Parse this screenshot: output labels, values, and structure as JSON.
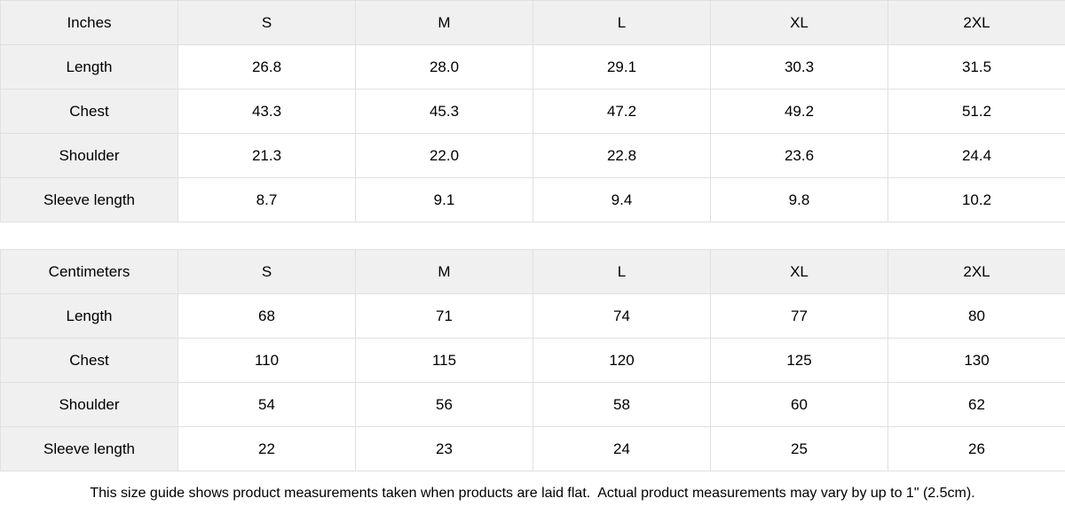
{
  "tables": [
    {
      "name": "inches",
      "header": [
        "Inches",
        "S",
        "M",
        "L",
        "XL",
        "2XL"
      ],
      "rows": [
        {
          "label": "Length",
          "values": [
            "26.8",
            "28.0",
            "29.1",
            "30.3",
            "31.5"
          ]
        },
        {
          "label": "Chest",
          "values": [
            "43.3",
            "45.3",
            "47.2",
            "49.2",
            "51.2"
          ]
        },
        {
          "label": "Shoulder",
          "values": [
            "21.3",
            "22.0",
            "22.8",
            "23.6",
            "24.4"
          ]
        },
        {
          "label": "Sleeve length",
          "values": [
            "8.7",
            "9.1",
            "9.4",
            "9.8",
            "10.2"
          ]
        }
      ]
    },
    {
      "name": "centimeters",
      "header": [
        "Centimeters",
        "S",
        "M",
        "L",
        "XL",
        "2XL"
      ],
      "rows": [
        {
          "label": "Length",
          "values": [
            "68",
            "71",
            "74",
            "77",
            "80"
          ]
        },
        {
          "label": "Chest",
          "values": [
            "110",
            "115",
            "120",
            "125",
            "130"
          ]
        },
        {
          "label": "Shoulder",
          "values": [
            "54",
            "56",
            "58",
            "60",
            "62"
          ]
        },
        {
          "label": "Sleeve length",
          "values": [
            "22",
            "23",
            "24",
            "25",
            "26"
          ]
        }
      ]
    }
  ],
  "footer": {
    "note": "This size guide shows product measurements taken when products are laid flat.  Actual product measurements may vary by up to 1\" (2.5cm)."
  },
  "colors": {
    "header_bg": "#f0f0f0",
    "cell_bg": "#ffffff",
    "border": "#e0e0e0",
    "text": "#000000"
  },
  "chart_data": [
    {
      "type": "table",
      "title": "Size guide (Inches)",
      "columns": [
        "Inches",
        "S",
        "M",
        "L",
        "XL",
        "2XL"
      ],
      "rows": [
        [
          "Length",
          26.8,
          28.0,
          29.1,
          30.3,
          31.5
        ],
        [
          "Chest",
          43.3,
          45.3,
          47.2,
          49.2,
          51.2
        ],
        [
          "Shoulder",
          21.3,
          22.0,
          22.8,
          23.6,
          24.4
        ],
        [
          "Sleeve length",
          8.7,
          9.1,
          9.4,
          9.8,
          10.2
        ]
      ]
    },
    {
      "type": "table",
      "title": "Size guide (Centimeters)",
      "columns": [
        "Centimeters",
        "S",
        "M",
        "L",
        "XL",
        "2XL"
      ],
      "rows": [
        [
          "Length",
          68,
          71,
          74,
          77,
          80
        ],
        [
          "Chest",
          110,
          115,
          120,
          125,
          130
        ],
        [
          "Shoulder",
          54,
          56,
          58,
          60,
          62
        ],
        [
          "Sleeve length",
          22,
          23,
          24,
          25,
          26
        ]
      ]
    }
  ]
}
